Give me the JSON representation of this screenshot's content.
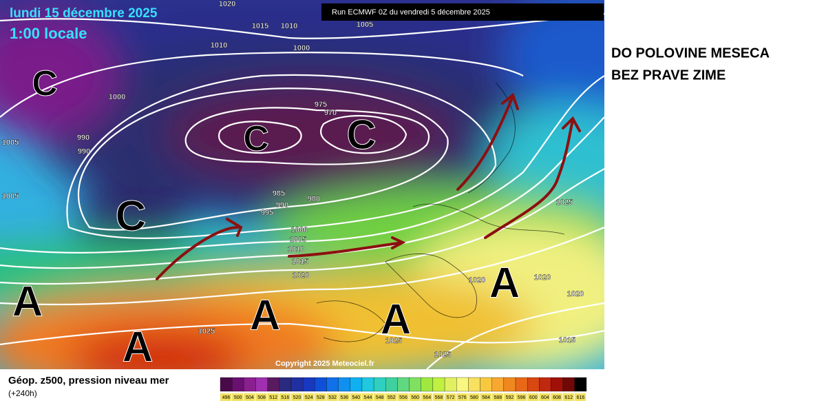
{
  "header": {
    "date": "lundi 15 décembre 2025",
    "time": "1:00 locale",
    "run": "Run ECMWF 0Z du vendredi 5 décembre 2025"
  },
  "caption": {
    "lines": [
      "DO POLOVINE MESECA",
      "BEZ PRAVE ZIME"
    ]
  },
  "footer": {
    "title": "Géop. z500, pression niveau mer",
    "subtitle": "(+240h)"
  },
  "copyright": "Copyright 2025 Meteociel.fr",
  "isobar_labels": [
    1020,
    1015,
    1010,
    1005,
    1010,
    1000,
    1000,
    990,
    990,
    1005,
    1005,
    975,
    970,
    985,
    990,
    995,
    980,
    1000,
    1005,
    1010,
    1015,
    1020,
    1025,
    1025,
    1025,
    1020,
    1020,
    1020,
    1025,
    1015
  ],
  "centers": [
    "C",
    "C",
    "C",
    "C",
    "A",
    "A",
    "A",
    "A",
    "A"
  ],
  "colorbar_labels": [
    496,
    500,
    504,
    508,
    512,
    516,
    520,
    524,
    528,
    532,
    536,
    540,
    544,
    548,
    552,
    556,
    560,
    564,
    568,
    572,
    576,
    580,
    584,
    588,
    592,
    596,
    600,
    604,
    608,
    612,
    616
  ]
}
